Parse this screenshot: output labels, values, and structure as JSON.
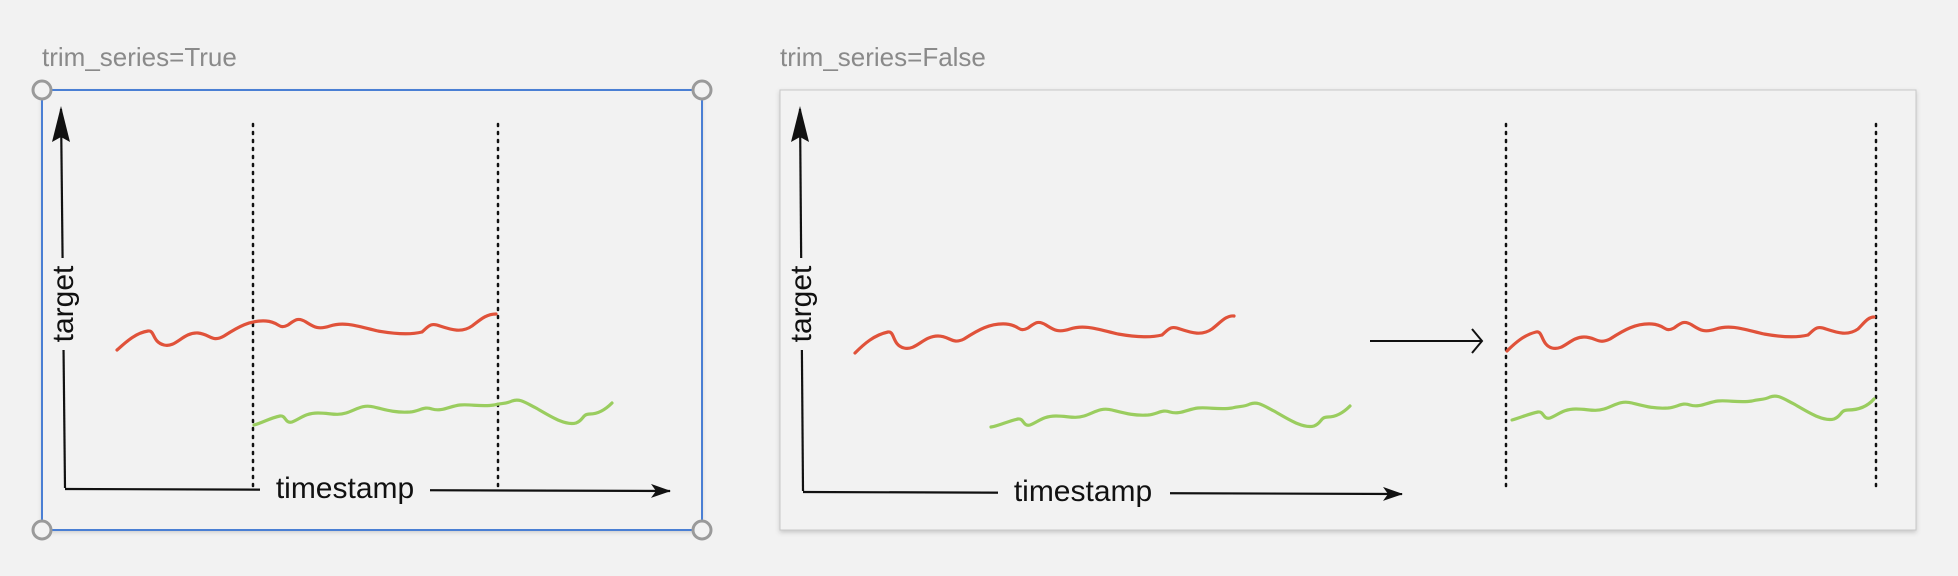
{
  "panels": {
    "left": {
      "caption": "trim_series=True",
      "selected": true
    },
    "right": {
      "caption": "trim_series=False",
      "selected": false
    }
  },
  "axes": {
    "x_label": "timestamp",
    "y_label": "target"
  },
  "colors": {
    "background": "#f2f2f2",
    "panel_fill": "#f2f2f2",
    "panel_border": "#c8c8c8",
    "selection": "#4a7fd4",
    "handle": "#9a9a9a",
    "series_red": "#e0523a",
    "series_green": "#9acd5f",
    "ink": "#111111"
  },
  "icons": {
    "transform_arrow": "right-arrow-icon",
    "resize_handles": "circle-handle-icon"
  }
}
